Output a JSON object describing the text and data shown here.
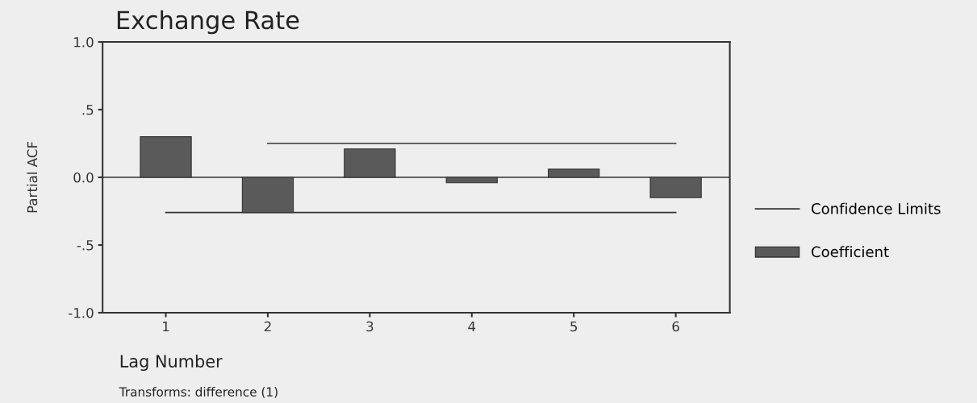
{
  "chart_data": {
    "type": "bar",
    "title": "Exchange Rate",
    "xlabel": "Lag Number",
    "ylabel": "Partial ACF",
    "annotations": [
      "Transforms: difference (1)"
    ],
    "categories": [
      "1",
      "2",
      "3",
      "4",
      "5",
      "6"
    ],
    "series": [
      {
        "name": "Coefficient",
        "color": "#5a5a5a",
        "values": [
          0.3,
          -0.26,
          0.21,
          -0.04,
          0.06,
          -0.15
        ]
      },
      {
        "name": "Confidence Limits",
        "type": "line",
        "color": "#333333",
        "values": [
          null,
          0.25,
          0.25,
          0.25,
          0.25,
          0.25
        ]
      },
      {
        "type": "line",
        "color": "#333333",
        "values": [
          -0.26,
          -0.26,
          -0.26,
          -0.26,
          -0.26,
          -0.26
        ]
      }
    ],
    "ylim": [
      -1.0,
      1.0
    ],
    "yticks": [
      {
        "value": -1.0,
        "label": "-1.0"
      },
      {
        "value": -0.5,
        "label": "-.5"
      },
      {
        "value": 0,
        "label": "0.0"
      },
      {
        "value": 0.5,
        "label": ".5"
      },
      {
        "value": 1.0,
        "label": "1.0"
      }
    ],
    "ref_lines": [
      {
        "axis": "y",
        "value": 0,
        "color": "#333333"
      }
    ],
    "grid": false,
    "legend": "right",
    "marker": "none",
    "line_style": "solid"
  }
}
